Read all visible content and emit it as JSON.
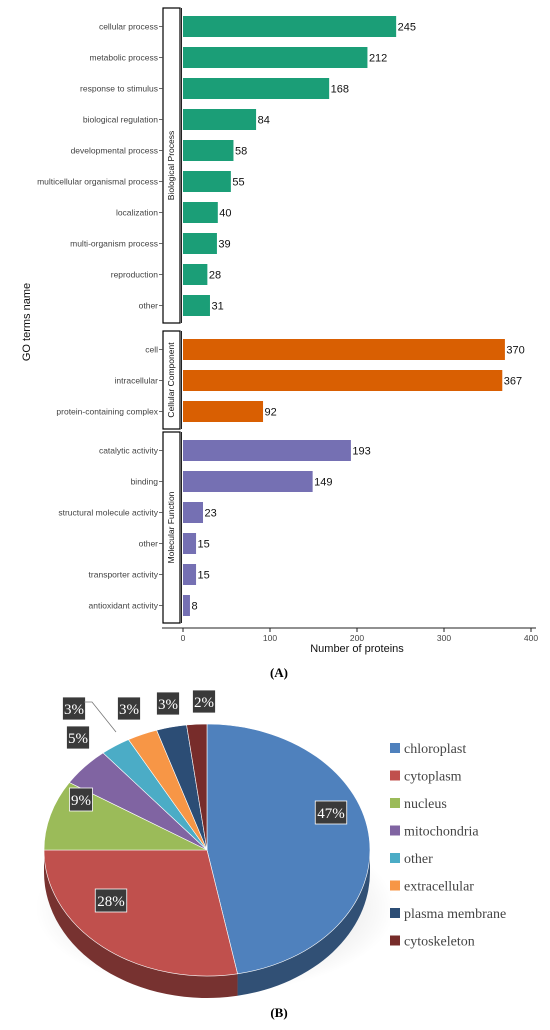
{
  "panel_labels": {
    "a": "(A)",
    "b": "(B)"
  },
  "chart_data": [
    {
      "type": "bar",
      "orientation": "horizontal",
      "xlabel": "Number of proteins",
      "ylabel": "GO terms name",
      "xlim": [
        0,
        400
      ],
      "xticks": [
        0,
        100,
        200,
        300,
        400
      ],
      "grid": false,
      "groups": [
        {
          "name": "Biological Process",
          "color": "#1b9e77",
          "categories": [
            "cellular process",
            "metabolic process",
            "response to stimulus",
            "biological regulation",
            "developmental process",
            "multicellular organismal process",
            "localization",
            "multi-organism process",
            "reproduction",
            "other"
          ],
          "values": [
            245,
            212,
            168,
            84,
            58,
            55,
            40,
            39,
            28,
            31
          ]
        },
        {
          "name": "Cellular Component",
          "color": "#d95f02",
          "categories": [
            "cell",
            "intracellular",
            "protein-containing complex"
          ],
          "values": [
            370,
            367,
            92
          ]
        },
        {
          "name": "Molecular Function",
          "color": "#7570b3",
          "categories": [
            "catalytic activity",
            "binding",
            "structural molecule activity",
            "other",
            "transporter activity",
            "antioxidant activity"
          ],
          "values": [
            193,
            149,
            23,
            15,
            15,
            8
          ]
        }
      ]
    },
    {
      "type": "pie",
      "style": "3d",
      "legend_position": "right",
      "labels": [
        "chloroplast",
        "cytoplasm",
        "nucleus",
        "mitochondria",
        "other",
        "extracellular",
        "plasma membrane",
        "cytoskeleton"
      ],
      "values": [
        47,
        28,
        9,
        5,
        3,
        3,
        3,
        2
      ],
      "value_labels": [
        "47%",
        "28%",
        "9%",
        "5%",
        "3%",
        "3%",
        "3%",
        "2%"
      ],
      "colors": [
        "#4f81bd",
        "#c0504d",
        "#9bbb59",
        "#8064a2",
        "#4bacc6",
        "#f79646",
        "#2c4d75",
        "#772c2a"
      ]
    }
  ]
}
